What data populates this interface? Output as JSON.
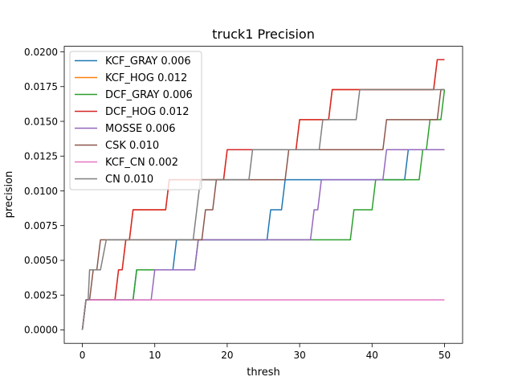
{
  "chart_data": {
    "type": "line",
    "title": "truck1 Precision",
    "xlabel": "thresh",
    "ylabel": "precision",
    "xlim": [
      -2.5,
      52.5
    ],
    "ylim": [
      -0.00097,
      0.0204
    ],
    "xticks": [
      0,
      10,
      20,
      30,
      40,
      50
    ],
    "xtick_labels": [
      "0",
      "10",
      "20",
      "30",
      "40",
      "50"
    ],
    "yticks": [
      0,
      0.0025,
      0.005,
      0.0075,
      0.01,
      0.0125,
      0.015,
      0.0175,
      0.02
    ],
    "ytick_labels": [
      "0.0000",
      "0.0025",
      "0.0050",
      "0.0075",
      "0.0100",
      "0.0125",
      "0.0150",
      "0.0175",
      "0.0200"
    ],
    "grid": false,
    "legend_position": "top-left",
    "series": [
      {
        "name": "KCF_GRAY 0.006",
        "color": "#1f77b4",
        "points": [
          [
            0,
            0
          ],
          [
            0.5,
            0.00216
          ],
          [
            7,
            0.00216
          ],
          [
            7.5,
            0.00432
          ],
          [
            12.5,
            0.00432
          ],
          [
            13,
            0.00648
          ],
          [
            25.5,
            0.00648
          ],
          [
            26,
            0.00864
          ],
          [
            27.5,
            0.00864
          ],
          [
            28,
            0.0108
          ],
          [
            44.5,
            0.0108
          ],
          [
            45,
            0.01296
          ],
          [
            50,
            0.01296
          ]
        ]
      },
      {
        "name": "KCF_HOG 0.012",
        "color": "#ff7f0e",
        "points": [
          [
            0,
            0
          ],
          [
            0.5,
            0.00216
          ],
          [
            4.5,
            0.00216
          ],
          [
            5,
            0.00432
          ],
          [
            5.5,
            0.00432
          ],
          [
            6,
            0.00648
          ],
          [
            6.5,
            0.00648
          ],
          [
            7,
            0.00864
          ],
          [
            11.5,
            0.00864
          ],
          [
            12,
            0.0108
          ],
          [
            19.5,
            0.0108
          ],
          [
            20,
            0.01296
          ],
          [
            29.5,
            0.01296
          ],
          [
            30,
            0.01512
          ],
          [
            34,
            0.01512
          ],
          [
            34.5,
            0.01728
          ],
          [
            48.5,
            0.01728
          ],
          [
            49,
            0.01944
          ],
          [
            50,
            0.01944
          ]
        ]
      },
      {
        "name": "DCF_GRAY 0.006",
        "color": "#2ca02c",
        "points": [
          [
            0,
            0
          ],
          [
            0.5,
            0.00216
          ],
          [
            7,
            0.00216
          ],
          [
            7.5,
            0.00432
          ],
          [
            10,
            0.00432
          ],
          [
            10.5,
            0.00432
          ],
          [
            15.5,
            0.00432
          ],
          [
            16,
            0.00648
          ],
          [
            37,
            0.00648
          ],
          [
            37.5,
            0.00864
          ],
          [
            40,
            0.00864
          ],
          [
            40.5,
            0.0108
          ],
          [
            46.5,
            0.0108
          ],
          [
            47,
            0.01296
          ],
          [
            47.5,
            0.01296
          ],
          [
            48,
            0.01512
          ],
          [
            49.5,
            0.01512
          ],
          [
            50,
            0.01728
          ]
        ]
      },
      {
        "name": "DCF_HOG 0.012",
        "color": "#d62728",
        "points": [
          [
            0,
            0
          ],
          [
            0.5,
            0.00216
          ],
          [
            4.5,
            0.00216
          ],
          [
            5,
            0.00432
          ],
          [
            5.5,
            0.00432
          ],
          [
            6,
            0.00648
          ],
          [
            6.5,
            0.00648
          ],
          [
            7,
            0.00864
          ],
          [
            11.5,
            0.00864
          ],
          [
            12,
            0.0108
          ],
          [
            19.5,
            0.0108
          ],
          [
            20,
            0.01296
          ],
          [
            29.5,
            0.01296
          ],
          [
            30,
            0.01512
          ],
          [
            34,
            0.01512
          ],
          [
            34.5,
            0.01728
          ],
          [
            48.5,
            0.01728
          ],
          [
            49,
            0.01944
          ],
          [
            50,
            0.01944
          ]
        ]
      },
      {
        "name": "MOSSE 0.006",
        "color": "#9467bd",
        "points": [
          [
            0,
            0
          ],
          [
            0.5,
            0.00216
          ],
          [
            9.5,
            0.00216
          ],
          [
            10,
            0.00432
          ],
          [
            15.5,
            0.00432
          ],
          [
            16,
            0.00648
          ],
          [
            31.5,
            0.00648
          ],
          [
            32,
            0.00864
          ],
          [
            32.5,
            0.00864
          ],
          [
            33,
            0.0108
          ],
          [
            41.5,
            0.0108
          ],
          [
            42,
            0.01296
          ],
          [
            50,
            0.01296
          ]
        ]
      },
      {
        "name": "CSK 0.010",
        "color": "#8c564b",
        "points": [
          [
            0,
            0
          ],
          [
            0.5,
            0.00216
          ],
          [
            1,
            0.00216
          ],
          [
            1.5,
            0.00432
          ],
          [
            2,
            0.00432
          ],
          [
            2.5,
            0.00648
          ],
          [
            16.5,
            0.00648
          ],
          [
            17,
            0.00864
          ],
          [
            18,
            0.00864
          ],
          [
            18.5,
            0.0108
          ],
          [
            28,
            0.0108
          ],
          [
            28.5,
            0.01296
          ],
          [
            41.5,
            0.01296
          ],
          [
            42,
            0.01512
          ],
          [
            49,
            0.01512
          ],
          [
            49.5,
            0.01728
          ],
          [
            50,
            0.01728
          ]
        ]
      },
      {
        "name": "KCF_CN 0.002",
        "color": "#e377c2",
        "points": [
          [
            0,
            0
          ],
          [
            0.5,
            0.00216
          ],
          [
            50,
            0.00216
          ]
        ]
      },
      {
        "name": "CN 0.010",
        "color": "#7f7f7f",
        "points": [
          [
            0,
            0
          ],
          [
            0.5,
            0.00216
          ],
          [
            0.8,
            0.00216
          ],
          [
            1,
            0.00432
          ],
          [
            2.5,
            0.00432
          ],
          [
            3.3,
            0.00648
          ],
          [
            15.3,
            0.00648
          ],
          [
            16.3,
            0.0108
          ],
          [
            23,
            0.0108
          ],
          [
            23.5,
            0.01296
          ],
          [
            32.7,
            0.01296
          ],
          [
            33.2,
            0.01512
          ],
          [
            37.8,
            0.01512
          ],
          [
            38.3,
            0.01728
          ],
          [
            50,
            0.01728
          ]
        ]
      }
    ]
  }
}
